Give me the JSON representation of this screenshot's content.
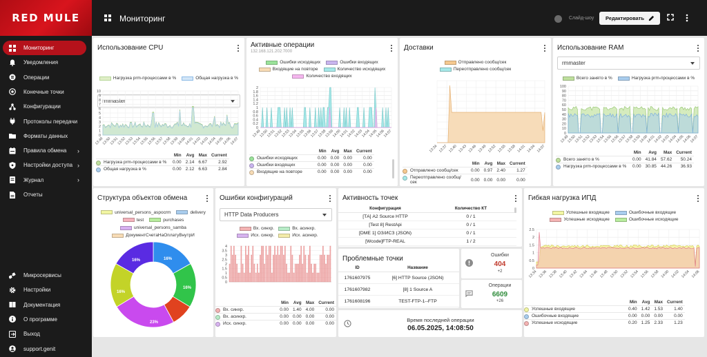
{
  "brand": {
    "logo_text": "RED MULE",
    "brand_color": "#b5121b"
  },
  "topbar": {
    "title": "Мониторинг",
    "slideshow_label": "Слайд-шоу",
    "edit_label": "Редактировать"
  },
  "sidebar": {
    "items": [
      {
        "label": "Мониторинг",
        "icon": "grid-icon",
        "active": true
      },
      {
        "label": "Уведомления",
        "icon": "bell-icon"
      },
      {
        "label": "Операции",
        "icon": "list-icon"
      },
      {
        "label": "Конечные точки",
        "icon": "target-icon"
      },
      {
        "label": "Конфигурации",
        "icon": "nodes-icon"
      },
      {
        "label": "Протоколы передачи",
        "icon": "plug-icon"
      },
      {
        "label": "Форматы данных",
        "icon": "folder-icon"
      },
      {
        "label": "Правила обмена",
        "icon": "rules-icon",
        "chevron": true
      },
      {
        "label": "Настройки доступа",
        "icon": "shield-icon",
        "chevron": true
      },
      {
        "label": "Журнал",
        "icon": "journal-icon",
        "chevron": true
      },
      {
        "label": "Отчеты",
        "icon": "report-icon"
      }
    ],
    "bottom_items": [
      {
        "label": "Микросервисы",
        "icon": "microservices-icon"
      },
      {
        "label": "Настройки",
        "icon": "gear-icon"
      },
      {
        "label": "Документация",
        "icon": "book-icon"
      },
      {
        "label": "О программе",
        "icon": "info-icon"
      },
      {
        "label": "Выход",
        "icon": "logout-icon"
      },
      {
        "label": "support.genit",
        "icon": "user-icon"
      }
    ]
  },
  "stats_headers": {
    "min": "Min",
    "avg": "Avg",
    "max": "Max",
    "current": "Current"
  },
  "cpu": {
    "title": "Использование CPU",
    "select": "rmmaster",
    "x_ticks": [
      "13:49",
      "13:50",
      "13:51",
      "13:52",
      "13:53",
      "13:54",
      "13:55",
      "13:56",
      "13:57",
      "13:58",
      "13:59",
      "14:00",
      "14:01",
      "14:02",
      "14:03",
      "14:04",
      "14:05",
      "14:06",
      "14:07"
    ],
    "y_ticks": [
      "10",
      "9",
      "8",
      "7",
      "6",
      "5",
      "4",
      "3",
      "2",
      "1",
      "0"
    ],
    "rows": [
      {
        "name": "Нагрузка prm-процессами в %",
        "min": "0.00",
        "avg": "2.14",
        "max": "6.67",
        "current": "2.92",
        "color": "#bfe09e"
      },
      {
        "name": "Общая нагрузка в %",
        "min": "0.00",
        "avg": "2.12",
        "max": "6.63",
        "current": "2.84",
        "color": "#a9cdee"
      }
    ]
  },
  "ops": {
    "title": "Активные операции",
    "subtitle": "132.168.121.202:7000",
    "legend": [
      {
        "name": "Ошибки исходящих",
        "color": "#9be39b"
      },
      {
        "name": "Ошибки входящих",
        "color": "#c9b5ef"
      },
      {
        "name": "Входящие на повторе",
        "color": "#f8dcb6"
      },
      {
        "name": "Количество исходящих",
        "color": "#a7e9e9"
      },
      {
        "name": "Количество входящих",
        "color": "#f5b7ef"
      }
    ],
    "x_ticks": [
      "13:49",
      "13:50",
      "13:51",
      "13:52",
      "13:53",
      "13:54",
      "13:55",
      "13:56",
      "13:57",
      "13:58",
      "13:59",
      "14:00",
      "14:01",
      "14:02",
      "14:03",
      "14:04",
      "14:05",
      "14:06",
      "14:07"
    ],
    "y_ticks": [
      "2",
      "1.8",
      "1.6",
      "1.4",
      "1.2",
      "1",
      "0.8",
      "0.6",
      "0.4",
      "0.2",
      "0"
    ],
    "rows": [
      {
        "name": "Ошибки исходящих",
        "min": "0.00",
        "avg": "0.00",
        "max": "0.00",
        "current": "0.00",
        "color": "#9be39b"
      },
      {
        "name": "Ошибки входящих",
        "min": "0.00",
        "avg": "0.00",
        "max": "0.00",
        "current": "0.00",
        "color": "#c9b5ef"
      },
      {
        "name": "Входящие на повторе",
        "min": "0.00",
        "avg": "0.00",
        "max": "0.00",
        "current": "0.00",
        "color": "#f8dcb6"
      }
    ]
  },
  "delivery": {
    "title": "Доставки",
    "legend": [
      {
        "name": "Отправлено сообщ/сек",
        "color": "#f6c990"
      },
      {
        "name": "Переотправлено сообщ/сек",
        "color": "#a7e9e9"
      }
    ],
    "x_ticks": [
      "13:34",
      "13:37",
      "13:40",
      "13:43",
      "13:46",
      "13:49",
      "13:52",
      "13:55",
      "13:58",
      "14:01",
      "14:04",
      "14:07"
    ],
    "rows": [
      {
        "name": "Отправлено сообщ/сек",
        "min": "0.00",
        "avg": "0.97",
        "max": "2.40",
        "current": "1.27",
        "color": "#f6c990"
      },
      {
        "name": "Переотправлено сообщ/сек",
        "min": "0.00",
        "avg": "0.00",
        "max": "0.00",
        "current": "0.00",
        "color": "#a7e9e9"
      }
    ]
  },
  "ram": {
    "title": "Использование RAM",
    "select": "rmmaster",
    "legend": [
      {
        "name": "Всего занято в %",
        "color": "#bfe09e"
      },
      {
        "name": "Нагрузка prm-процессами в %",
        "color": "#a9cdee"
      }
    ],
    "x_ticks": [
      "13:49",
      "13:50",
      "13:51",
      "13:52",
      "13:53",
      "13:54",
      "13:55",
      "13:56",
      "13:57",
      "13:58",
      "13:59",
      "14:00",
      "14:01",
      "14:02",
      "14:03",
      "14:04",
      "14:05",
      "14:06",
      "14:07"
    ],
    "y_ticks": [
      "100",
      "90",
      "80",
      "70",
      "60",
      "50",
      "40",
      "30",
      "20",
      "10",
      "0"
    ],
    "rows": [
      {
        "name": "Всего занято в %",
        "min": "0.00",
        "avg": "41.84",
        "max": "57.62",
        "current": "50.24",
        "color": "#bfe09e"
      },
      {
        "name": "Нагрузка prm-процессами в %",
        "min": "0.00",
        "avg": "30.85",
        "max": "44.26",
        "current": "36.93",
        "color": "#a9cdee"
      }
    ]
  },
  "structure": {
    "title": "Структура объектов обмена",
    "legend": [
      {
        "name": "universal_persons_aspocrm",
        "color": "#f2f6a3"
      },
      {
        "name": "delivery",
        "color": "#a9cdee"
      },
      {
        "name": "test",
        "color": "#f4b3bd"
      },
      {
        "name": "purchases",
        "color": "#b8ec9e"
      },
      {
        "name": "universal_persons_samba",
        "color": "#d7b0f0"
      },
      {
        "name": "ДокументСчетаНаОплатуВнутрИ",
        "color": "#f8dcb6"
      }
    ],
    "chart_data": {
      "type": "pie",
      "slices": [
        {
          "name": "delivery",
          "value": 16,
          "color": "#2f8ded"
        },
        {
          "name": "purchases",
          "value": 16,
          "color": "#31c44a"
        },
        {
          "name": "test",
          "value": 8,
          "color": "#e0421f"
        },
        {
          "name": "universal_persons_samba",
          "value": 23,
          "color": "#c94aee"
        },
        {
          "name": "universal_persons_aspocrm",
          "value": 16,
          "color": "#c3d328"
        },
        {
          "name": "ДокументСчетаНаОплатуВнутрИ",
          "value": 16,
          "color": "#5a2be2"
        }
      ],
      "labels": [
        "16%",
        "16%",
        "23%",
        "16%",
        "16%"
      ]
    }
  },
  "config_errors": {
    "title": "Ошибки конфигураций",
    "select": "HTTP Data Producers",
    "legend": [
      {
        "name": "Вх. синхр.",
        "color": "#f4b3b3"
      },
      {
        "name": "Вх. асинхр.",
        "color": "#b8ecc8"
      },
      {
        "name": "Исх. синхр.",
        "color": "#d8b4f0"
      },
      {
        "name": "Исх. асинхр.",
        "color": "#f4ecaa"
      }
    ],
    "y_ticks": [
      "4",
      "3.5",
      "3",
      "2.5",
      "2",
      "1.5",
      "1",
      "0.5",
      "0"
    ],
    "rows": [
      {
        "name": "Вх. синхр.",
        "min": "0.00",
        "avg": "1.40",
        "max": "4.00",
        "current": "0.00",
        "color": "#f4b3b3"
      },
      {
        "name": "Вх. асинхр.",
        "min": "0.00",
        "avg": "0.00",
        "max": "0.00",
        "current": "0.00",
        "color": "#b8ecc8"
      },
      {
        "name": "Исх. синхр.",
        "min": "0.00",
        "avg": "0.00",
        "max": "0.00",
        "current": "0.00",
        "color": "#d8b4f0"
      }
    ]
  },
  "endpoints": {
    "title": "Активность точек",
    "col_config": "Конфигурация",
    "col_count": "Количество КТ",
    "rows": [
      {
        "config": "[ТА] A2 Source HTTP",
        "count": "0 / 1"
      },
      {
        "config": "[Test 8] RestApi",
        "count": "0 / 1"
      },
      {
        "config": "[DME 1] ОЗ/ИСЗ (JSON)",
        "count": "0 / 1"
      },
      {
        "config": "[Wcode]FTP-REAL",
        "count": "1 / 2"
      }
    ]
  },
  "problem": {
    "title": "Проблемные точки",
    "col_id": "ID",
    "col_name": "Название",
    "rows": [
      {
        "id": "1761607975",
        "name": "[6] HTTP Source (JSON)"
      },
      {
        "id": "1761607982",
        "name": "[8] 1 Source A"
      },
      {
        "id": "1761608196",
        "name": "TEST-FTP-1--FTP"
      }
    ]
  },
  "errors_counter": {
    "label": "Ошибки",
    "value": "404",
    "delta": "+2",
    "color": "#c0392b"
  },
  "ops_counter": {
    "label": "Операции",
    "value": "6609",
    "delta": "+26",
    "color": "#2e8b3a"
  },
  "last_op": {
    "label": "Время последней операции",
    "value": "06.05.2025, 14:08:50"
  },
  "flex": {
    "title": "Гибкая нагрузка ИПД",
    "legend": [
      {
        "name": "Успешные входящие",
        "color": "#f2f6a3"
      },
      {
        "name": "Ошибочные входящие",
        "color": "#a9cdee"
      },
      {
        "name": "Успешные исходящие",
        "color": "#f4b3b3"
      },
      {
        "name": "Ошибочные исходящие",
        "color": "#b8ec9e"
      }
    ],
    "x_ticks": [
      "13:34",
      "13:36",
      "13:38",
      "13:40",
      "13:42",
      "13:44",
      "13:46",
      "13:48",
      "13:50",
      "13:52",
      "13:54",
      "13:56",
      "13:58",
      "14:00",
      "14:02",
      "14:04",
      "14:06"
    ],
    "y_ticks": [
      "2.5",
      "2",
      "1.5",
      "1",
      "0.5",
      "0"
    ],
    "rows": [
      {
        "name": "Успешные входящие",
        "min": "0.40",
        "avg": "1.42",
        "max": "1.53",
        "current": "1.40",
        "color": "#f2f6a3"
      },
      {
        "name": "Ошибочные входящие",
        "min": "0.00",
        "avg": "0.00",
        "max": "0.00",
        "current": "0.00",
        "color": "#a9cdee"
      },
      {
        "name": "Успешные исходящие",
        "min": "0.20",
        "avg": "1.25",
        "max": "2.33",
        "current": "1.23",
        "color": "#f4b3b3"
      }
    ]
  }
}
